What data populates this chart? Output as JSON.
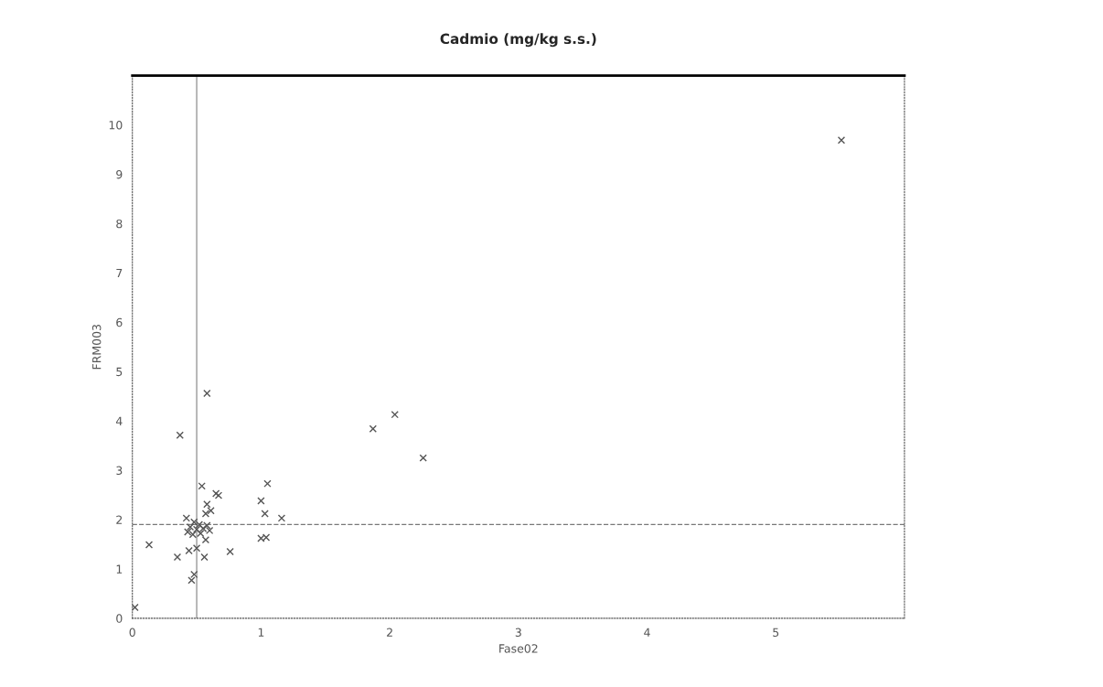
{
  "chart_data": {
    "type": "scatter",
    "title": "Cadmio (mg/kg s.s.)",
    "xlabel": "Fase02",
    "ylabel": "FRM003",
    "x": [
      5.51,
      2.04,
      1.87,
      2.26,
      0.58,
      0.37,
      1.05,
      1.0,
      1.03,
      1.16,
      1.0,
      1.04,
      0.76,
      0.13,
      0.35,
      0.56,
      0.48,
      0.46,
      0.02,
      0.54,
      0.65,
      0.67,
      0.58,
      0.61,
      0.57,
      0.42,
      0.57,
      0.5,
      0.44,
      0.45,
      0.5,
      0.55,
      0.6,
      0.48,
      0.52,
      0.43,
      0.58,
      0.47,
      0.53
    ],
    "values": [
      9.69,
      4.13,
      3.84,
      3.25,
      4.56,
      3.71,
      2.73,
      2.38,
      2.12,
      2.03,
      1.62,
      1.64,
      1.35,
      1.49,
      1.24,
      1.24,
      0.89,
      0.77,
      0.22,
      2.68,
      2.53,
      2.49,
      2.31,
      2.18,
      2.12,
      2.03,
      1.59,
      1.42,
      1.37,
      1.85,
      1.8,
      1.82,
      1.78,
      1.95,
      1.9,
      1.75,
      1.88,
      1.7,
      1.72
    ],
    "color": "#555555",
    "marker": "cross",
    "xlim": [
      0,
      6
    ],
    "ylim": [
      0,
      11
    ],
    "xticks": [
      0,
      1,
      2,
      3,
      4,
      5
    ],
    "yticks": [
      0,
      1,
      2,
      3,
      4,
      5,
      6,
      7,
      8,
      9,
      10
    ],
    "ref_lines": [
      {
        "axis": "x",
        "value": 0.5,
        "color": "#999999",
        "line_style": "solid"
      },
      {
        "axis": "y",
        "value": 1.9,
        "color": "#777777",
        "line_style": "dashed"
      }
    ],
    "grid": false
  }
}
